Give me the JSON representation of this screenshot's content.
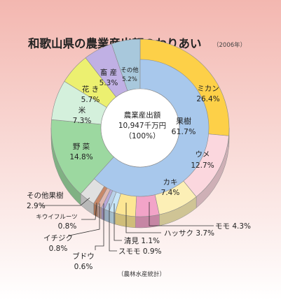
{
  "header": {
    "title": "和歌山県の農業産出額のわりあい",
    "year": "（2006年）"
  },
  "center": {
    "line1": "農業産出額",
    "line2": "10,947千万円",
    "line3": "（100%）"
  },
  "source": "（農林水産統計）",
  "colors": {
    "background_top": "#f3b7b0",
    "background_bottom": "#ffffff",
    "inner_disc": "#a8c8ec"
  },
  "chart_data": {
    "type": "pie",
    "subtype": "nested-donut-3d",
    "title": "和歌山県の農業産出額のわりあい",
    "year_label": "（2006年）",
    "total_label": "10,947千万円",
    "unit": "%",
    "outer": [
      {
        "key": "mikan",
        "name": "ミカン",
        "value": 26.4,
        "color": "#fdd048"
      },
      {
        "key": "ume",
        "name": "ウメ",
        "value": 12.7,
        "color": "#fbd7de"
      },
      {
        "key": "kaki",
        "name": "カキ",
        "value": 7.4,
        "color": "#fcefb6"
      },
      {
        "key": "momo",
        "name": "モモ",
        "value": 4.3,
        "color": "#f2a4c8"
      },
      {
        "key": "hassaku",
        "name": "ハッサク",
        "value": 3.7,
        "color": "#fde694"
      },
      {
        "key": "kiyomi",
        "name": "清見",
        "value": 1.1,
        "color": "#c8e6f8"
      },
      {
        "key": "sumomo",
        "name": "スモモ",
        "value": 0.9,
        "color": "#b8d0e8"
      },
      {
        "key": "budou",
        "name": "ブドウ",
        "value": 0.6,
        "color": "#b8a8d8"
      },
      {
        "key": "ichijiku",
        "name": "イチジク",
        "value": 0.8,
        "color": "#e0b8b0"
      },
      {
        "key": "kiwi",
        "name": "キウイフルーツ",
        "value": 0.8,
        "color": "#c88868"
      },
      {
        "key": "other_fruit",
        "name": "その他果樹",
        "value": 2.9,
        "color": "#e0e0e0"
      },
      {
        "key": "yasai",
        "name": "野 菜",
        "value": 14.8,
        "color": "#9cd8a0"
      },
      {
        "key": "kome",
        "name": "米",
        "value": 7.3,
        "color": "#d4f0dc"
      },
      {
        "key": "hanaki",
        "name": "花 き",
        "value": 5.7,
        "color": "#ecf070"
      },
      {
        "key": "chikusan",
        "name": "畜 産",
        "value": 5.3,
        "color": "#c0b0e4"
      },
      {
        "key": "sonota",
        "name": "その他",
        "value": 5.2,
        "color": "#a8c8dc"
      }
    ],
    "inner": {
      "name": "果樹",
      "value": 61.7,
      "color": "#a8c8ec"
    },
    "labels": {
      "mikan": {
        "name": "ミカン",
        "pct": "26.4%"
      },
      "ume": {
        "name": "ウメ",
        "pct": "12.7%"
      },
      "kaki": {
        "name": "カキ",
        "pct": "7.4%"
      },
      "yasai": {
        "name": "野 菜",
        "pct": "14.8%"
      },
      "kome": {
        "name": "米",
        "pct": "7.3%"
      },
      "hanaki": {
        "name": "花 き",
        "pct": "5.7%"
      },
      "chikusan": {
        "name": "畜 産",
        "pct": "5.3%"
      },
      "sonota": {
        "name": "その他",
        "pct": "5.2%"
      },
      "inner": {
        "name": "果樹",
        "pct": "61.7%"
      },
      "momo": {
        "text": "モモ 4.3%"
      },
      "hassaku": {
        "text": "ハッサク 3.7%"
      },
      "kiyomi": {
        "text": "清見 1.1%"
      },
      "sumomo": {
        "text": "スモモ 0.9%"
      },
      "budou": {
        "name": "ブドウ",
        "pct": "0.6%"
      },
      "ichijiku": {
        "name": "イチジク",
        "pct": "0.8%"
      },
      "kiwi": {
        "name": "キウイフルーツ",
        "pct": "0.8%"
      },
      "other_fruit": {
        "name": "その他果樹",
        "pct": "2.9%"
      }
    }
  }
}
